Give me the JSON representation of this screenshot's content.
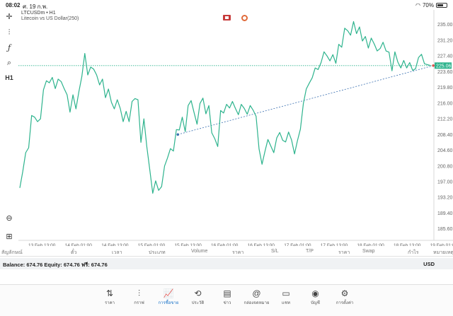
{
  "status": {
    "time": "08:02",
    "date": "ศ. 19 ก.พ.",
    "battery": "70%",
    "battery_level": 0.7
  },
  "symbol": {
    "ticker": "LTCUSDm • H1",
    "description": "Litecoin vs US Dollar(250)"
  },
  "chart_data": {
    "type": "line",
    "x_ticks": [
      "13 Feb 13:00",
      "14 Feb 01:00",
      "14 Feb 13:00",
      "15 Feb 01:00",
      "15 Feb 13:00",
      "16 Feb 01:00",
      "16 Feb 13:00",
      "17 Feb 01:00",
      "17 Feb 13:00",
      "18 Feb 01:00",
      "18 Feb 13:00",
      "19 Feb 01:00"
    ],
    "y_ticks": [
      "235.00",
      "231.20",
      "227.40",
      "223.60",
      "219.80",
      "216.00",
      "212.20",
      "208.40",
      "204.60",
      "200.80",
      "197.00",
      "193.20",
      "189.40",
      "185.60"
    ],
    "ylim": [
      183.5,
      237.5
    ],
    "current_price": "225.06",
    "current_price_value": 225.06,
    "series": [
      {
        "values": [
          195.5,
          199.5,
          204,
          205.2,
          213,
          212.6,
          211.5,
          212.2,
          219.2,
          221.4,
          220.9,
          222.2,
          219.5,
          221.8,
          221.2,
          219.5,
          218,
          213.8,
          218,
          214.6,
          218.8,
          222.4,
          228,
          222.8,
          224.7,
          224.2,
          222.8,
          220.4,
          221.8,
          217.3,
          219.4,
          216.2,
          214.6,
          216.8,
          214.7,
          211.5,
          214,
          211.5,
          216.4,
          217.1,
          216.8,
          206.5,
          212.2,
          205.5,
          199.9,
          194.2,
          197.2,
          194.9,
          195.8,
          200.8,
          202.7,
          205,
          204.4,
          209.6,
          209.5,
          212.6,
          209.1,
          215.4,
          216.6,
          213.7,
          210.9,
          215.9,
          217.2,
          213.4,
          215.4,
          208.8,
          207.4,
          205.5,
          214.2,
          213.6,
          215.7,
          214.8,
          216.4,
          214.7,
          213.2,
          215.7,
          214.7,
          213.3,
          215.4,
          214.3,
          212.8,
          204.9,
          201.2,
          204.3,
          207.2,
          205.6,
          204,
          207.6,
          208.9,
          207,
          206.6,
          209,
          207.1,
          203.7,
          206.9,
          209.7,
          215.9,
          219.4,
          220.8,
          222.1,
          224.5,
          224.1,
          225.8,
          228.4,
          227.4,
          226.2,
          227.7,
          225.6,
          230.2,
          229.5,
          234.1,
          233.5,
          232.4,
          235.7,
          232.8,
          234.4,
          231,
          232.1,
          229.3,
          231.7,
          230.3,
          228.6,
          229.2,
          230.7,
          228.6,
          228.3,
          223.8,
          228.4,
          225.9,
          224.5,
          226.3,
          224.5,
          225.8,
          223.9,
          224.3,
          227,
          227.8,
          225.5,
          225.3,
          225.1
        ]
      }
    ],
    "trendline": {
      "start": {
        "index": 53.5,
        "value": 208.4
      },
      "end": {
        "index": 140,
        "value": 225.06
      }
    }
  },
  "table_header": {
    "cols": [
      "สัญลักษณ์",
      "ตั๋ว",
      "เวลา",
      "ประเภท",
      "Volume",
      "ราคา",
      "S/L",
      "T/P",
      "ราคา",
      "Swap",
      "กำไร",
      "หมายเหตุ"
    ]
  },
  "balance": {
    "text": "Balance: 674.76  Equity: 674.76  ฟรี: 674.76",
    "currency": "USD"
  },
  "tabs": [
    {
      "label": "ราคา",
      "icon": "⇅",
      "active": false
    },
    {
      "label": "กราฟ",
      "icon": "⫶",
      "active": false
    },
    {
      "label": "การซื้อขาย",
      "icon": "📈",
      "active": true
    },
    {
      "label": "ประวัติ",
      "icon": "⟲",
      "active": false
    },
    {
      "label": "ข่าว",
      "icon": "▤",
      "active": false
    },
    {
      "label": "กล่องจดหมาย",
      "icon": "@",
      "active": false
    },
    {
      "label": "แชท",
      "icon": "▭",
      "active": false
    },
    {
      "label": "บัญชี",
      "icon": "◉",
      "active": false
    },
    {
      "label": "การตั้งค่า",
      "icon": "⚙",
      "active": false
    }
  ],
  "colors": {
    "line": "#2db38d",
    "accent": "#1a73c8",
    "price_tag": "#2db38d",
    "trend": "#3a6fb0"
  }
}
